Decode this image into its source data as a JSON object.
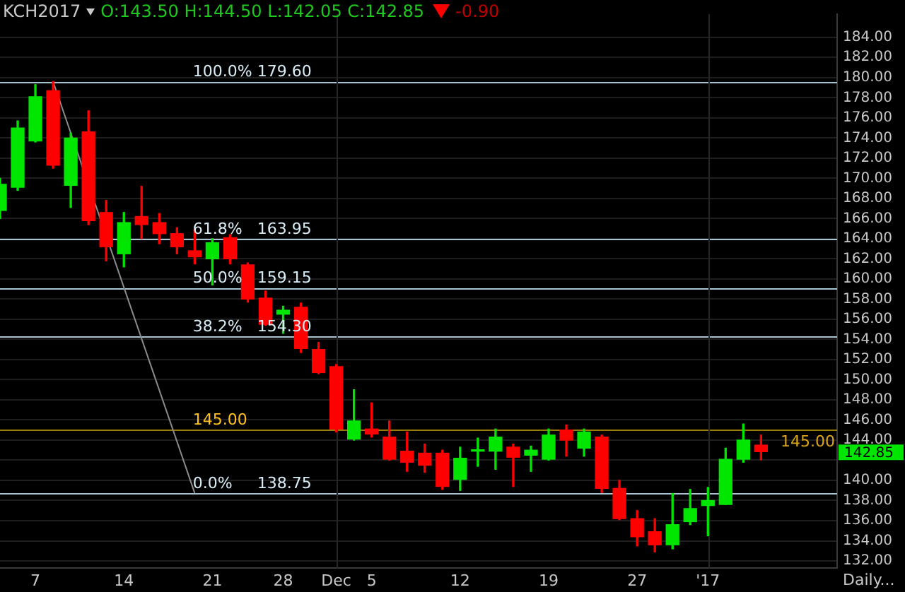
{
  "chart_data": {
    "type": "candlestick",
    "categories": [
      null,
      null,
      "7",
      null,
      null,
      null,
      null,
      "14",
      null,
      null,
      null,
      null,
      "21",
      null,
      null,
      null,
      "28",
      null,
      null,
      "Dec",
      null,
      "5",
      null,
      null,
      null,
      null,
      "12",
      null,
      null,
      null,
      null,
      "19",
      null,
      null,
      null,
      null,
      "27",
      null,
      null,
      null,
      "'17",
      null,
      null,
      null
    ],
    "ohlc": [
      [
        166.8,
        170.0,
        166.0,
        169.4
      ],
      [
        169.1,
        175.7,
        168.8,
        175.0
      ],
      [
        173.7,
        179.3,
        173.6,
        178.1
      ],
      [
        178.7,
        179.6,
        171.0,
        171.3
      ],
      [
        169.3,
        174.5,
        167.1,
        174.0
      ],
      [
        174.6,
        176.7,
        165.4,
        165.8
      ],
      [
        166.6,
        167.8,
        161.8,
        163.2
      ],
      [
        162.5,
        166.6,
        161.2,
        165.6
      ],
      [
        166.2,
        169.2,
        164.0,
        165.4
      ],
      [
        165.6,
        166.5,
        163.5,
        164.5
      ],
      [
        164.5,
        165.1,
        162.5,
        163.2
      ],
      [
        162.8,
        164.9,
        161.5,
        162.2
      ],
      [
        162.0,
        164.0,
        159.4,
        163.6
      ],
      [
        164.1,
        164.4,
        161.5,
        162.0
      ],
      [
        161.4,
        161.6,
        157.7,
        158.0
      ],
      [
        158.1,
        158.8,
        155.4,
        155.5
      ],
      [
        156.5,
        157.3,
        154.6,
        156.9
      ],
      [
        157.2,
        157.6,
        152.7,
        153.1
      ],
      [
        153.0,
        153.7,
        150.6,
        150.7
      ],
      [
        151.3,
        151.5,
        144.8,
        145.1
      ],
      [
        144.1,
        149.0,
        144.0,
        145.9
      ],
      [
        145.1,
        147.7,
        144.3,
        144.6
      ],
      [
        144.3,
        145.9,
        142.0,
        142.1
      ],
      [
        142.9,
        144.8,
        140.9,
        141.8
      ],
      [
        142.7,
        143.6,
        140.8,
        141.5
      ],
      [
        142.7,
        143.0,
        139.1,
        139.4
      ],
      [
        140.1,
        143.3,
        139.0,
        142.2
      ],
      [
        142.9,
        144.2,
        141.4,
        143.0
      ],
      [
        142.9,
        145.1,
        141.1,
        144.3
      ],
      [
        143.3,
        143.6,
        139.4,
        142.3
      ],
      [
        142.5,
        143.4,
        140.9,
        143.0
      ],
      [
        142.1,
        145.1,
        142.0,
        144.5
      ],
      [
        145.0,
        145.5,
        142.4,
        144.0
      ],
      [
        143.2,
        145.1,
        142.4,
        144.8
      ],
      [
        144.3,
        144.5,
        138.8,
        139.2
      ],
      [
        139.2,
        140.0,
        136.1,
        136.2
      ],
      [
        136.2,
        137.0,
        133.5,
        134.4
      ],
      [
        134.9,
        136.2,
        132.9,
        133.6
      ],
      [
        133.6,
        138.7,
        133.2,
        135.6
      ],
      [
        135.9,
        139.1,
        135.6,
        137.2
      ],
      [
        137.5,
        139.3,
        134.5,
        138.0
      ],
      [
        137.6,
        143.2,
        137.6,
        142.1
      ],
      [
        142.1,
        145.6,
        141.8,
        144.0
      ],
      [
        143.5,
        144.5,
        142.05,
        142.85
      ]
    ],
    "colors": [
      "#00e600",
      "#00e600",
      "#00e600",
      "#ff0000",
      "#00e600",
      "#ff0000",
      "#ff0000",
      "#00e600",
      "#ff0000",
      "#ff0000",
      "#ff0000",
      "#ff0000",
      "#00e600",
      "#ff0000",
      "#ff0000",
      "#ff0000",
      "#00e600",
      "#ff0000",
      "#ff0000",
      "#ff0000",
      "#00e600",
      "#ff0000",
      "#ff0000",
      "#ff0000",
      "#ff0000",
      "#ff0000",
      "#00e600",
      "#00e600",
      "#00e600",
      "#ff0000",
      "#00e600",
      "#00e600",
      "#ff0000",
      "#00e600",
      "#ff0000",
      "#ff0000",
      "#ff0000",
      "#ff0000",
      "#00e600",
      "#00e600",
      "#00e600",
      "#00e600",
      "#00e600",
      "#ff0000"
    ],
    "series": [
      {
        "type": "line",
        "color": "#8c8c8c",
        "values": [
          null,
          null,
          null,
          179.6,
          null,
          null,
          null,
          null,
          null,
          null,
          null,
          138.75,
          null,
          null,
          null,
          null,
          null,
          null,
          null,
          null,
          null,
          null,
          null,
          null,
          null,
          null,
          null,
          null,
          null,
          null,
          null,
          null,
          null,
          null,
          null,
          null,
          null,
          null,
          null,
          null,
          null,
          null,
          null,
          null
        ]
      }
    ],
    "ylim": [
      131.3,
      186.3
    ],
    "yticks": [
      {
        "value": 132,
        "label": "132.00"
      },
      {
        "value": 134,
        "label": "134.00"
      },
      {
        "value": 136,
        "label": "136.00"
      },
      {
        "value": 138,
        "label": "138.00"
      },
      {
        "value": 140,
        "label": "140.00"
      },
      {
        "value": 142,
        "label": null
      },
      {
        "value": 144,
        "label": "144.00"
      },
      {
        "value": 146,
        "label": "146.00"
      },
      {
        "value": 148,
        "label": "148.00"
      },
      {
        "value": 150,
        "label": "150.00"
      },
      {
        "value": 152,
        "label": "152.00"
      },
      {
        "value": 154,
        "label": "154.00"
      },
      {
        "value": 156,
        "label": "156.00"
      },
      {
        "value": 158,
        "label": "158.00"
      },
      {
        "value": 160,
        "label": "160.00"
      },
      {
        "value": 162,
        "label": "162.00"
      },
      {
        "value": 164,
        "label": "164.00"
      },
      {
        "value": 166,
        "label": "166.00"
      },
      {
        "value": 168,
        "label": "168.00"
      },
      {
        "value": 170,
        "label": "170.00"
      },
      {
        "value": 172,
        "label": "172.00"
      },
      {
        "value": 174,
        "label": "174.00"
      },
      {
        "value": 176,
        "label": "176.00"
      },
      {
        "value": 178,
        "label": "178.00"
      },
      {
        "value": 180,
        "label": "180.00"
      },
      {
        "value": 182,
        "label": "182.00"
      },
      {
        "value": 184,
        "label": "184.00"
      }
    ],
    "grid": "y",
    "legend": false,
    "ref_lines": [
      {
        "axis": "y",
        "value": 179.6,
        "label": "100.0% 179.60",
        "color": "#a8c4d2"
      },
      {
        "axis": "y",
        "value": 163.95,
        "label": "61.8%   163.95",
        "color": "#a8c4d2"
      },
      {
        "axis": "y",
        "value": 159.15,
        "label": "50.0%   159.15",
        "color": "#a8c4d2"
      },
      {
        "axis": "y",
        "value": 154.3,
        "label": "38.2%   154.30",
        "color": "#a8c4d2"
      },
      {
        "axis": "y",
        "value": 138.75,
        "label": "0.0%     138.75",
        "color": "#a8c4d2"
      },
      {
        "axis": "y",
        "value": 145,
        "label": "145.00",
        "color": "#9a7b0a"
      },
      {
        "axis": "x",
        "value": "Dec",
        "color": "#262626"
      },
      {
        "axis": "x",
        "value": "'17",
        "color": "#262626"
      }
    ],
    "annotations": [
      "KCH2017",
      "O:143.50 H:144.50 L:142.05 C:142.85",
      "-0.90",
      "Daily...",
      {
        "text": "145.00",
        "y": 145
      },
      "142.85"
    ]
  }
}
